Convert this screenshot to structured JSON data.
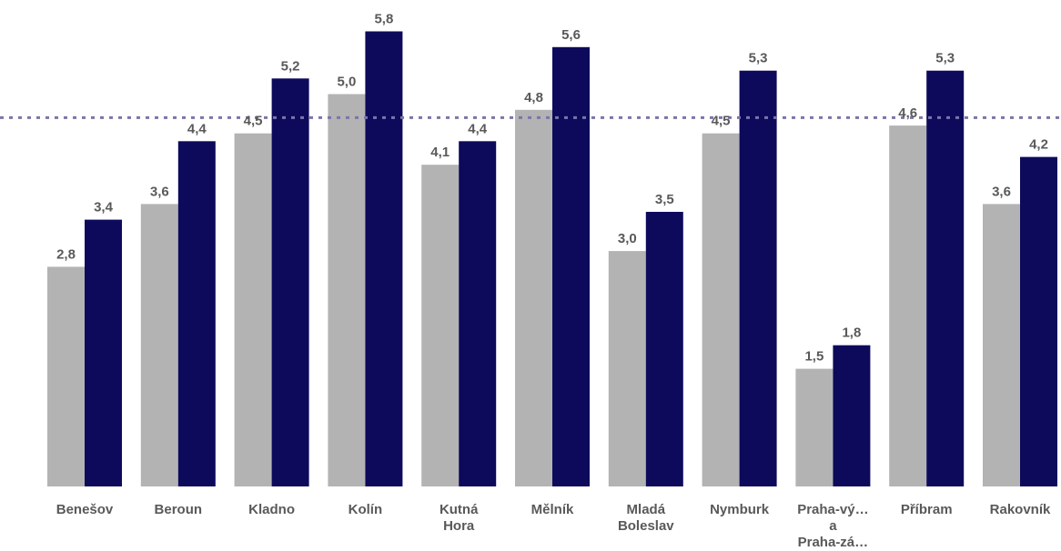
{
  "chart_data": {
    "type": "bar",
    "categories": [
      [
        "Benešov"
      ],
      [
        "Beroun"
      ],
      [
        "Kladno"
      ],
      [
        "Kolín"
      ],
      [
        "Kutná",
        "Hora"
      ],
      [
        "Mělník"
      ],
      [
        "Mladá",
        "Boleslav"
      ],
      [
        "Nymburk"
      ],
      [
        "Praha-vý…",
        "a",
        "Praha-zá…"
      ],
      [
        "Příbram"
      ],
      [
        "Rakovník"
      ]
    ],
    "series": [
      {
        "color": "#b3b3b3",
        "values": [
          2.8,
          3.6,
          4.5,
          5.0,
          4.1,
          4.8,
          3.0,
          4.5,
          1.5,
          4.6,
          3.6
        ],
        "labels": [
          "2,8",
          "3,6",
          "4,5",
          "5,0",
          "4,1",
          "4,8",
          "3,0",
          "4,5",
          "1,5",
          "4,6",
          "3,6"
        ]
      },
      {
        "color": "#0d0a5c",
        "values": [
          3.4,
          4.4,
          5.2,
          5.8,
          4.4,
          5.6,
          3.5,
          5.3,
          1.8,
          5.3,
          4.2
        ],
        "labels": [
          "3,4",
          "4,4",
          "5,2",
          "5,8",
          "4,4",
          "5,6",
          "3,5",
          "5,3",
          "1,8",
          "5,3",
          "4,2"
        ]
      }
    ],
    "reference_line": {
      "value": 4.7,
      "style": "dotted",
      "color": "#7a76a8"
    },
    "ylim": [
      0,
      6.2
    ],
    "grid": false,
    "legend": "none",
    "title": "",
    "xlabel": "",
    "ylabel": ""
  }
}
